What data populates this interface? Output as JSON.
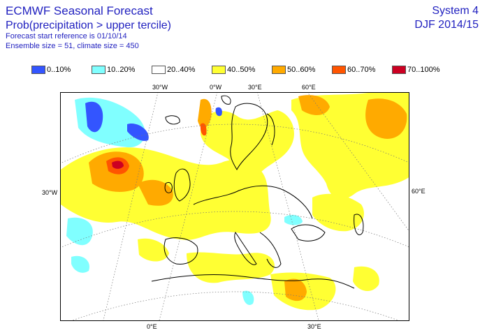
{
  "header": {
    "title": "ECMWF Seasonal Forecast",
    "subtitle": "Prob(precipitation > upper tercile)",
    "start_ref": "Forecast start reference is 01/10/14",
    "ensemble": "Ensemble size = 51, climate size = 450",
    "system": "System 4",
    "period": "DJF 2014/15"
  },
  "legend": [
    {
      "label": "0..10%",
      "color": "#3355ff"
    },
    {
      "label": "10..20%",
      "color": "#80ffff"
    },
    {
      "label": "20..40%",
      "color": "#ffffff"
    },
    {
      "label": "40..50%",
      "color": "#ffff33"
    },
    {
      "label": "50..60%",
      "color": "#ffaa00"
    },
    {
      "label": "60..70%",
      "color": "#ff5500"
    },
    {
      "label": "70..100%",
      "color": "#cc0022"
    }
  ],
  "axes": {
    "top": [
      "30°W",
      "0°W",
      "30°E",
      "60°E"
    ],
    "left": "30°W",
    "right": "60°E",
    "bottom": [
      "0°E",
      "30°E"
    ]
  }
}
